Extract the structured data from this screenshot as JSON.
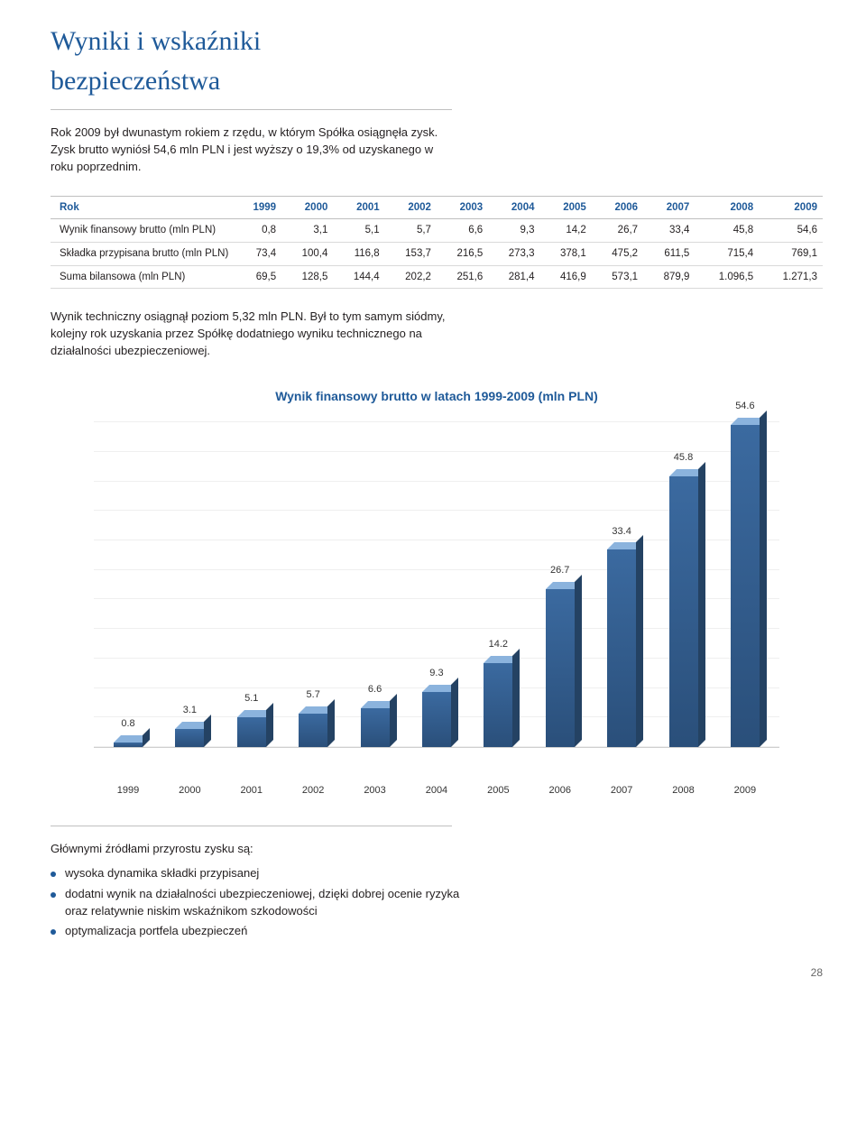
{
  "title_line1": "Wyniki i wskaźniki",
  "title_line2": "bezpieczeństwa",
  "intro": "Rok 2009 był dwunastym rokiem z rzędu, w którym Spółka osiągnęła zysk. Zysk brutto wyniósł 54,6 mln PLN i jest wyższy o 19,3% od uzyskanego w roku poprzednim.",
  "table": {
    "header_first": "Rok",
    "years": [
      "1999",
      "2000",
      "2001",
      "2002",
      "2003",
      "2004",
      "2005",
      "2006",
      "2007",
      "2008",
      "2009"
    ],
    "rows": [
      {
        "label": "Wynik finansowy brutto (mln PLN)",
        "cells": [
          "0,8",
          "3,1",
          "5,1",
          "5,7",
          "6,6",
          "9,3",
          "14,2",
          "26,7",
          "33,4",
          "45,8",
          "54,6"
        ]
      },
      {
        "label": "Składka przypisana brutto (mln PLN)",
        "cells": [
          "73,4",
          "100,4",
          "116,8",
          "153,7",
          "216,5",
          "273,3",
          "378,1",
          "475,2",
          "611,5",
          "715,4",
          "769,1"
        ]
      },
      {
        "label": "Suma bilansowa (mln PLN)",
        "cells": [
          "69,5",
          "128,5",
          "144,4",
          "202,2",
          "251,6",
          "281,4",
          "416,9",
          "573,1",
          "879,9",
          "1.096,5",
          "1.271,3"
        ]
      }
    ]
  },
  "tech_para": "Wynik techniczny osiągnął poziom 5,32 mln PLN. Był to tym samym siódmy, kolejny rok uzyskania przez Spółkę dodatniego wyniku technicznego na działalności ubezpieczeniowej.",
  "chart": {
    "type": "bar",
    "title": "Wynik finansowy brutto w latach 1999-2009 (mln PLN)",
    "categories": [
      "1999",
      "2000",
      "2001",
      "2002",
      "2003",
      "2004",
      "2005",
      "2006",
      "2007",
      "2008",
      "2009"
    ],
    "values": [
      0.8,
      3.1,
      5.1,
      5.7,
      6.6,
      9.3,
      14.2,
      26.7,
      33.4,
      45.8,
      54.6
    ],
    "value_labels": [
      "0.8",
      "3.1",
      "5.1",
      "5.7",
      "6.6",
      "9.3",
      "14.2",
      "26.7",
      "33.4",
      "45.8",
      "54.6"
    ],
    "ymax": 55,
    "grid_step": 5,
    "bar_front_gradient": [
      "#3b6aa0",
      "#2a4f7a"
    ],
    "bar_top_color": "#8bb3dd",
    "bar_side_color": "#244263",
    "grid_color": "#efefef",
    "axis_color": "#cfcfcf",
    "background_color": "#ffffff",
    "label_fontsize": 11,
    "title_fontsize": 14
  },
  "sources_head": "Głównymi źródłami przyrostu zysku są:",
  "bullets": [
    "wysoka dynamika składki przypisanej",
    "dodatni wynik na działalności ubezpieczeniowej, dzięki dobrej ocenie ryzyka oraz relatywnie niskim wskaźnikom szkodowości",
    "optymalizacja portfela ubezpieczeń"
  ],
  "page_number": "28"
}
